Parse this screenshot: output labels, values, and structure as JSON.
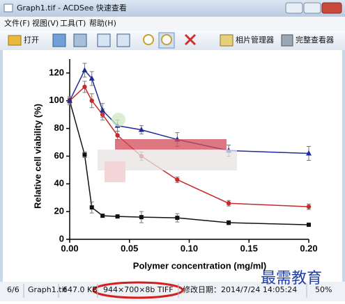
{
  "window": {
    "title": "Graph1.tif - ACDSee 快速查看"
  },
  "menu": [
    "文件(F)",
    "视图(V)",
    "工具(T)",
    "帮助(H)"
  ],
  "toolbar": {
    "open": "打开",
    "photo_manager": "相片管理器",
    "full_viewer": "完整查看器"
  },
  "status": [
    "6/6",
    "Graph1.tif",
    "647.0 KB",
    "944×700×8b TIFF",
    "修改日期：2014/7/24 14:05:24",
    "50%"
  ],
  "watermark": "最需教育",
  "chart_data": {
    "type": "line",
    "x_label": "Polymer concentration (mg/ml)",
    "y_label": "Relative cell viability (%)",
    "x": [
      0,
      0.0125,
      0.0185,
      0.0275,
      0.04,
      0.06,
      0.09,
      0.133,
      0.2
    ],
    "series": [
      {
        "color": "#111111",
        "marker": "square",
        "values": [
          100,
          61,
          23,
          17,
          16.5,
          16,
          15.5,
          12,
          10.5
        ],
        "errors": [
          2,
          2,
          4,
          1,
          1,
          4,
          3,
          1.5,
          1
        ]
      },
      {
        "color": "#c8282c",
        "marker": "circle",
        "values": [
          100,
          110,
          100,
          90,
          75,
          60,
          43,
          26,
          23.5
        ],
        "errors": [
          2,
          4,
          5,
          4,
          3,
          3,
          2,
          2,
          2
        ]
      },
      {
        "color": "#1f2a9c",
        "marker": "triangle",
        "values": [
          100,
          122,
          116,
          93,
          82,
          79,
          72,
          64,
          62
        ],
        "errors": [
          3,
          5,
          5,
          5,
          4,
          3,
          5,
          4,
          5
        ]
      }
    ],
    "xlim": [
      0,
      0.2
    ],
    "ylim": [
      0,
      130
    ],
    "xticks": [
      {
        "value": 0,
        "label": "0.00"
      },
      {
        "value": 0.05,
        "label": "0.05"
      },
      {
        "value": 0.1,
        "label": "0.10"
      },
      {
        "value": 0.15,
        "label": "0.15"
      },
      {
        "value": 0.2,
        "label": "0.20"
      }
    ],
    "yticks": [
      0,
      20,
      40,
      60,
      80,
      100,
      120
    ]
  }
}
